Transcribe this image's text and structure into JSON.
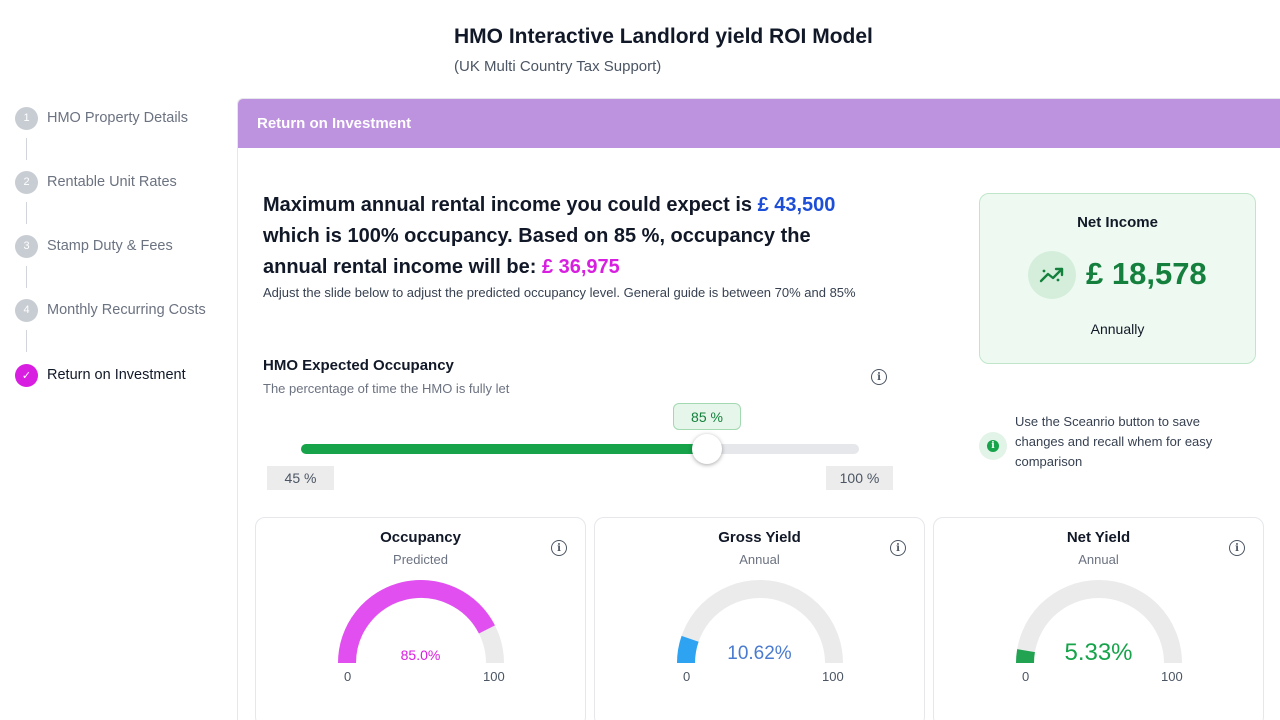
{
  "header": {
    "title": "HMO Interactive Landlord yield ROI Model",
    "subtitle": "(UK Multi Country Tax Support)"
  },
  "stepper": {
    "steps": [
      {
        "num": "1",
        "label": "HMO Property Details"
      },
      {
        "num": "2",
        "label": "Rentable Unit Rates"
      },
      {
        "num": "3",
        "label": "Stamp Duty & Fees"
      },
      {
        "num": "4",
        "label": "Monthly Recurring Costs"
      },
      {
        "num": "✓",
        "label": "Return on Investment"
      }
    ]
  },
  "panel": {
    "header": "Return on Investment",
    "headline": {
      "part1": "Maximum annual rental income you could expect is ",
      "max_income": "£ 43,500",
      "part2": " which is 100% occupancy. Based on 85 %, occupancy the annual rental income will be: ",
      "expected_income": "£ 36,975"
    },
    "guide": "Adjust the slide below to adjust the predicted occupancy level. General guide is between 70% and 85%"
  },
  "occupancy_slider": {
    "title": "HMO Expected Occupancy",
    "subtitle": "The percentage of time the HMO is fully let",
    "value_label": "85 %",
    "value": 85,
    "min_label": "45 %",
    "max_label": "100 %",
    "info_icon": "i"
  },
  "net_income": {
    "title": "Net Income",
    "value": "£ 18,578",
    "period": "Annually",
    "icon": "trending-up-icon"
  },
  "tip": {
    "icon": "i",
    "text": "Use the Sceanrio button to save changes and recall whem for easy comparison"
  },
  "gauges": [
    {
      "title": "Occupancy",
      "subtitle": "Predicted",
      "value_label": "85.0%",
      "value": 85,
      "min": "0",
      "max": "100",
      "color": "#e14ff0",
      "value_color": "#d81ee0"
    },
    {
      "title": "Gross Yield",
      "subtitle": "Annual",
      "value_label": "10.62%",
      "value": 10.62,
      "min": "0",
      "max": "100",
      "color": "#2ea3f2",
      "value_color": "#4a7bd0"
    },
    {
      "title": "Net Yield",
      "subtitle": "Annual",
      "value_label": "5.33%",
      "value": 5.33,
      "min": "0",
      "max": "100",
      "color": "#22a352",
      "value_color": "#16a34a"
    }
  ],
  "colors": {
    "accent": "#bd92df",
    "step_active": "#d81ee0",
    "positive": "#16a34a",
    "max_income": "#1d4ed8"
  }
}
